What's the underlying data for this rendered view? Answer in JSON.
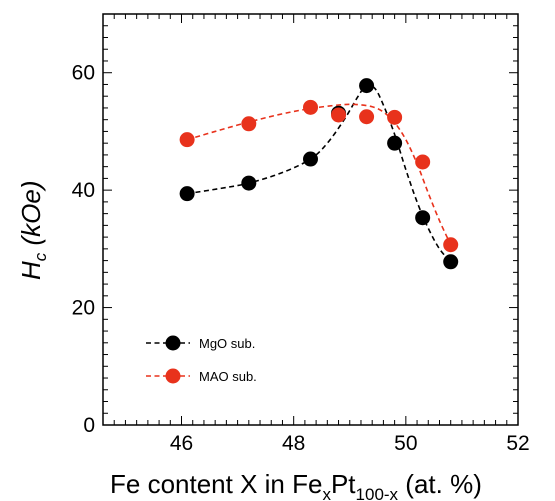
{
  "chart_data": {
    "type": "scatter",
    "title": "",
    "xlabel": {
      "prefix": "Fe content X in Fe",
      "sub1": "x",
      "mid": "Pt",
      "sub2": "100-x",
      "suffix": "  (at. %)"
    },
    "ylabel": {
      "main": "H",
      "sub": "c",
      "suffix": " (kOe)"
    },
    "xlim": [
      44.6,
      52
    ],
    "ylim": [
      0,
      70
    ],
    "x_ticks": [
      46,
      48,
      50,
      52
    ],
    "x_tick_labels": [
      "46",
      "48",
      "50",
      "52"
    ],
    "y_ticks": [
      0,
      20,
      40,
      60
    ],
    "y_tick_labels": [
      "0",
      "20",
      "40",
      "60"
    ],
    "x_minor_step": 0.2,
    "y_minor_step": 2,
    "grid": false,
    "legend_position": "bottom-left",
    "series": [
      {
        "name": "MgO sub.",
        "color": "#000000",
        "line_style": "dashed",
        "x": [
          46.1,
          47.2,
          48.3,
          48.8,
          49.3,
          49.8,
          50.3,
          50.8
        ],
        "y": [
          39.4,
          41.2,
          45.3,
          53.1,
          57.8,
          48.0,
          35.3,
          27.8
        ],
        "fit_x": [
          46.1,
          46.7,
          47.2,
          47.8,
          48.3,
          48.6,
          48.9,
          49.15,
          49.3,
          49.45,
          49.6,
          49.8,
          50.0,
          50.2,
          50.4,
          50.6,
          50.8
        ],
        "fit_y": [
          39.4,
          40.3,
          41.2,
          43.0,
          45.3,
          48.0,
          52.0,
          56.0,
          57.9,
          57.3,
          54.5,
          49.5,
          43.5,
          38.0,
          33.5,
          30.0,
          27.8
        ]
      },
      {
        "name": "MAO sub.",
        "color": "#e8321c",
        "line_style": "dashed",
        "x": [
          46.1,
          47.2,
          48.3,
          48.8,
          49.3,
          49.8,
          50.3,
          50.8
        ],
        "y": [
          48.6,
          51.3,
          54.1,
          52.8,
          52.5,
          52.4,
          44.8,
          30.7
        ],
        "fit_x": [
          46.1,
          46.6,
          47.2,
          47.8,
          48.3,
          48.8,
          49.1,
          49.4,
          49.6,
          49.8,
          50.0,
          50.2,
          50.4,
          50.6,
          50.8
        ],
        "fit_y": [
          48.6,
          50.0,
          51.6,
          53.0,
          53.9,
          54.5,
          54.6,
          54.2,
          53.3,
          51.5,
          48.6,
          44.5,
          39.5,
          34.8,
          30.7
        ]
      }
    ]
  }
}
